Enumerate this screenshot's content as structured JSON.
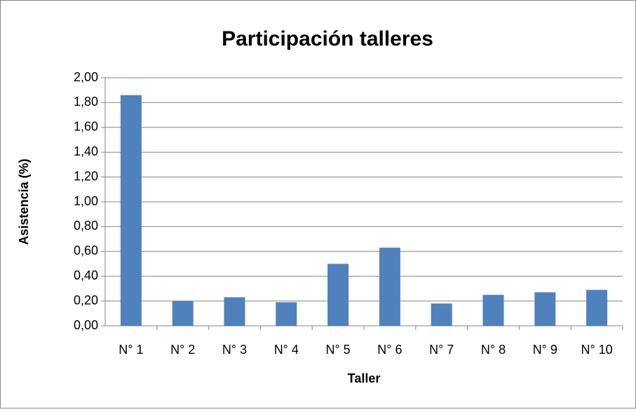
{
  "chart_data": {
    "type": "bar",
    "title": "Participación talleres",
    "x_label": "Taller",
    "y_label": "Asistencia (%)",
    "categories": [
      "N° 1",
      "N° 2",
      "N° 3",
      "N° 4",
      "N° 5",
      "N° 6",
      "N° 7",
      "N° 8",
      "N° 9",
      "N° 10"
    ],
    "values": [
      1.86,
      0.2,
      0.23,
      0.19,
      0.5,
      0.63,
      0.18,
      0.25,
      0.27,
      0.29
    ],
    "color": "#4f81bd",
    "ylim": [
      0,
      2
    ],
    "yticks": [
      {
        "value": 0,
        "label": "0,00"
      },
      {
        "value": 0.2,
        "label": "0,20"
      },
      {
        "value": 0.4,
        "label": "0,40"
      },
      {
        "value": 0.6,
        "label": "0,60"
      },
      {
        "value": 0.8,
        "label": "0,80"
      },
      {
        "value": 1.0,
        "label": "1,00"
      },
      {
        "value": 1.2,
        "label": "1,20"
      },
      {
        "value": 1.4,
        "label": "1,40"
      },
      {
        "value": 1.6,
        "label": "1,60"
      },
      {
        "value": 1.8,
        "label": "1,80"
      },
      {
        "value": 2.0,
        "label": "2,00"
      }
    ],
    "grid": true
  }
}
